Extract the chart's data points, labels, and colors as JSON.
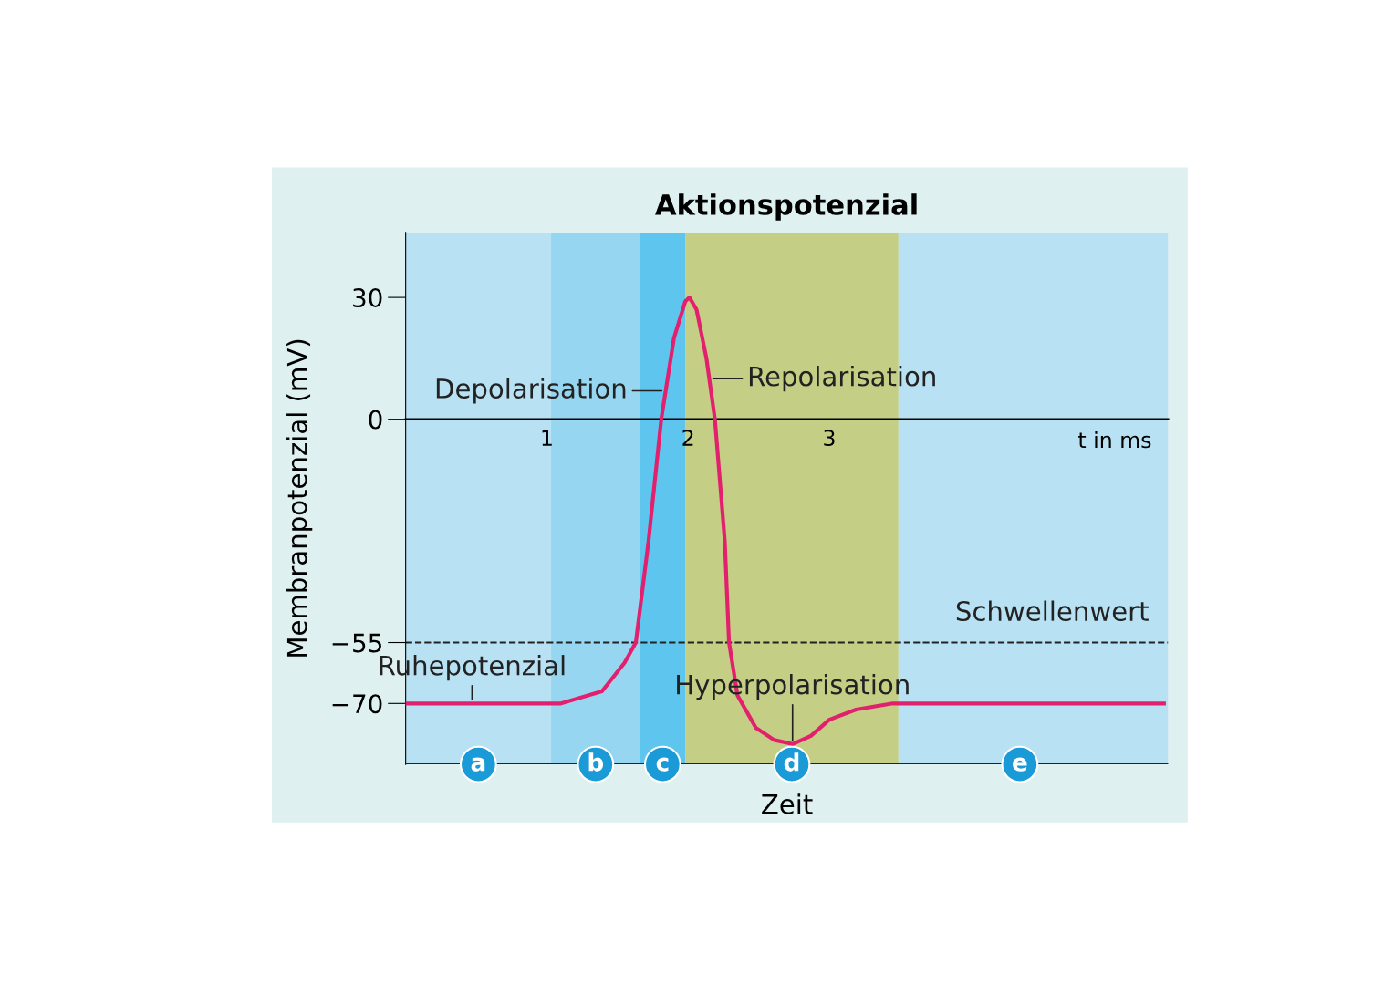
{
  "chart_data": {
    "type": "line",
    "title": "Aktionspotenzial",
    "xlabel": "Zeit",
    "ylabel": "Membranpotenzial (mV)",
    "x": [
      0,
      0.47,
      1.1,
      1.39,
      1.55,
      1.63,
      1.72,
      1.81,
      1.9,
      1.98,
      2.01,
      2.06,
      2.13,
      2.19,
      2.26,
      2.29,
      2.35,
      2.48,
      2.61,
      2.74,
      2.87,
      3.0,
      3.19,
      3.45,
      5.37
    ],
    "series": [
      {
        "color": "#e2206e",
        "values": [
          -70,
          -70,
          -70,
          -67,
          -60,
          -55,
          -30,
          0,
          20,
          29,
          30,
          27,
          15,
          0,
          -30,
          -55,
          -68,
          -76,
          -79,
          -80,
          -78,
          -74,
          -71.5,
          -70,
          -70
        ]
      }
    ],
    "xlim": [
      0,
      5.4
    ],
    "xticks": [
      1,
      2,
      3
    ],
    "ylim": [
      -85,
      46
    ],
    "yticks": [
      30,
      0,
      {
        "value": -55,
        "label": "−55"
      },
      {
        "value": -70,
        "label": "−70"
      }
    ],
    "grid": false,
    "legend": false,
    "line_style": "solid",
    "marker": "none",
    "ref_lines": [
      {
        "axis": "y",
        "value": -55,
        "label": "Schwellenwert",
        "color": "#222222",
        "line_style": "dashed"
      }
    ],
    "bands": [
      {
        "axis": "x",
        "from": 0,
        "to": 1.03,
        "label": "a",
        "color": "#b8e2f4"
      },
      {
        "axis": "x",
        "from": 1.03,
        "to": 1.66,
        "label": "b",
        "color": "#97d6f1"
      },
      {
        "axis": "x",
        "from": 1.66,
        "to": 1.98,
        "label": "c",
        "color": "#5ec5ee"
      },
      {
        "axis": "x",
        "from": 1.98,
        "to": 3.49,
        "label": "d",
        "color": "#c4cf85"
      },
      {
        "axis": "x",
        "from": 3.49,
        "to": 5.4,
        "label": "e",
        "color": "#b8e2f4"
      }
    ],
    "annotations": [
      {
        "text": "Depolarisation",
        "x": 1.84,
        "y": 7
      },
      {
        "text": "Repolarisation",
        "x": 2.15,
        "y": 10
      },
      {
        "text": "Ruhepotenzial",
        "x": 0.47,
        "y": -70
      },
      {
        "text": "Hyperpolarisation",
        "x": 2.74,
        "y": -80
      },
      "t in ms"
    ]
  }
}
